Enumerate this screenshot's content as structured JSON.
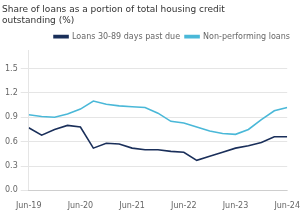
{
  "chart_data": {
    "type": "line",
    "title": "Share of loans as a portion of total housing credit\noutstanding (%)",
    "x": [
      0,
      1,
      2,
      3,
      4,
      5,
      6,
      7,
      8,
      9,
      10,
      11,
      12,
      13,
      14,
      15,
      16,
      17,
      18,
      19,
      20
    ],
    "series": [
      {
        "name": "Loans 30-89 days past due",
        "color": "#1a2f5a",
        "values": [
          0.77,
          0.68,
          0.75,
          0.8,
          0.78,
          0.52,
          0.58,
          0.57,
          0.52,
          0.5,
          0.5,
          0.48,
          0.47,
          0.37,
          0.42,
          0.47,
          0.52,
          0.55,
          0.59,
          0.66,
          0.66
        ]
      },
      {
        "name": "Non-performing loans",
        "color": "#4ab8d8",
        "values": [
          0.93,
          0.91,
          0.9,
          0.94,
          1.0,
          1.1,
          1.06,
          1.04,
          1.03,
          1.02,
          0.95,
          0.85,
          0.83,
          0.78,
          0.73,
          0.7,
          0.69,
          0.75,
          0.87,
          0.98,
          1.02
        ]
      }
    ],
    "xlim": [
      0,
      20
    ],
    "xticks": [
      {
        "value": 0,
        "label": "Jun-19"
      },
      {
        "value": 4,
        "label": "Jun-20"
      },
      {
        "value": 8,
        "label": "Jun-21"
      },
      {
        "value": 12,
        "label": "Jun-22"
      },
      {
        "value": 16,
        "label": "Jun-23"
      },
      {
        "value": 20,
        "label": "Jun-24"
      }
    ],
    "ylim": [
      0.0,
      1.72
    ],
    "yticks": [
      {
        "value": 0,
        "label": "0.0"
      },
      0.3,
      0.6,
      0.9,
      1.2,
      1.5
    ],
    "grid": "y",
    "legend": "upper right"
  }
}
